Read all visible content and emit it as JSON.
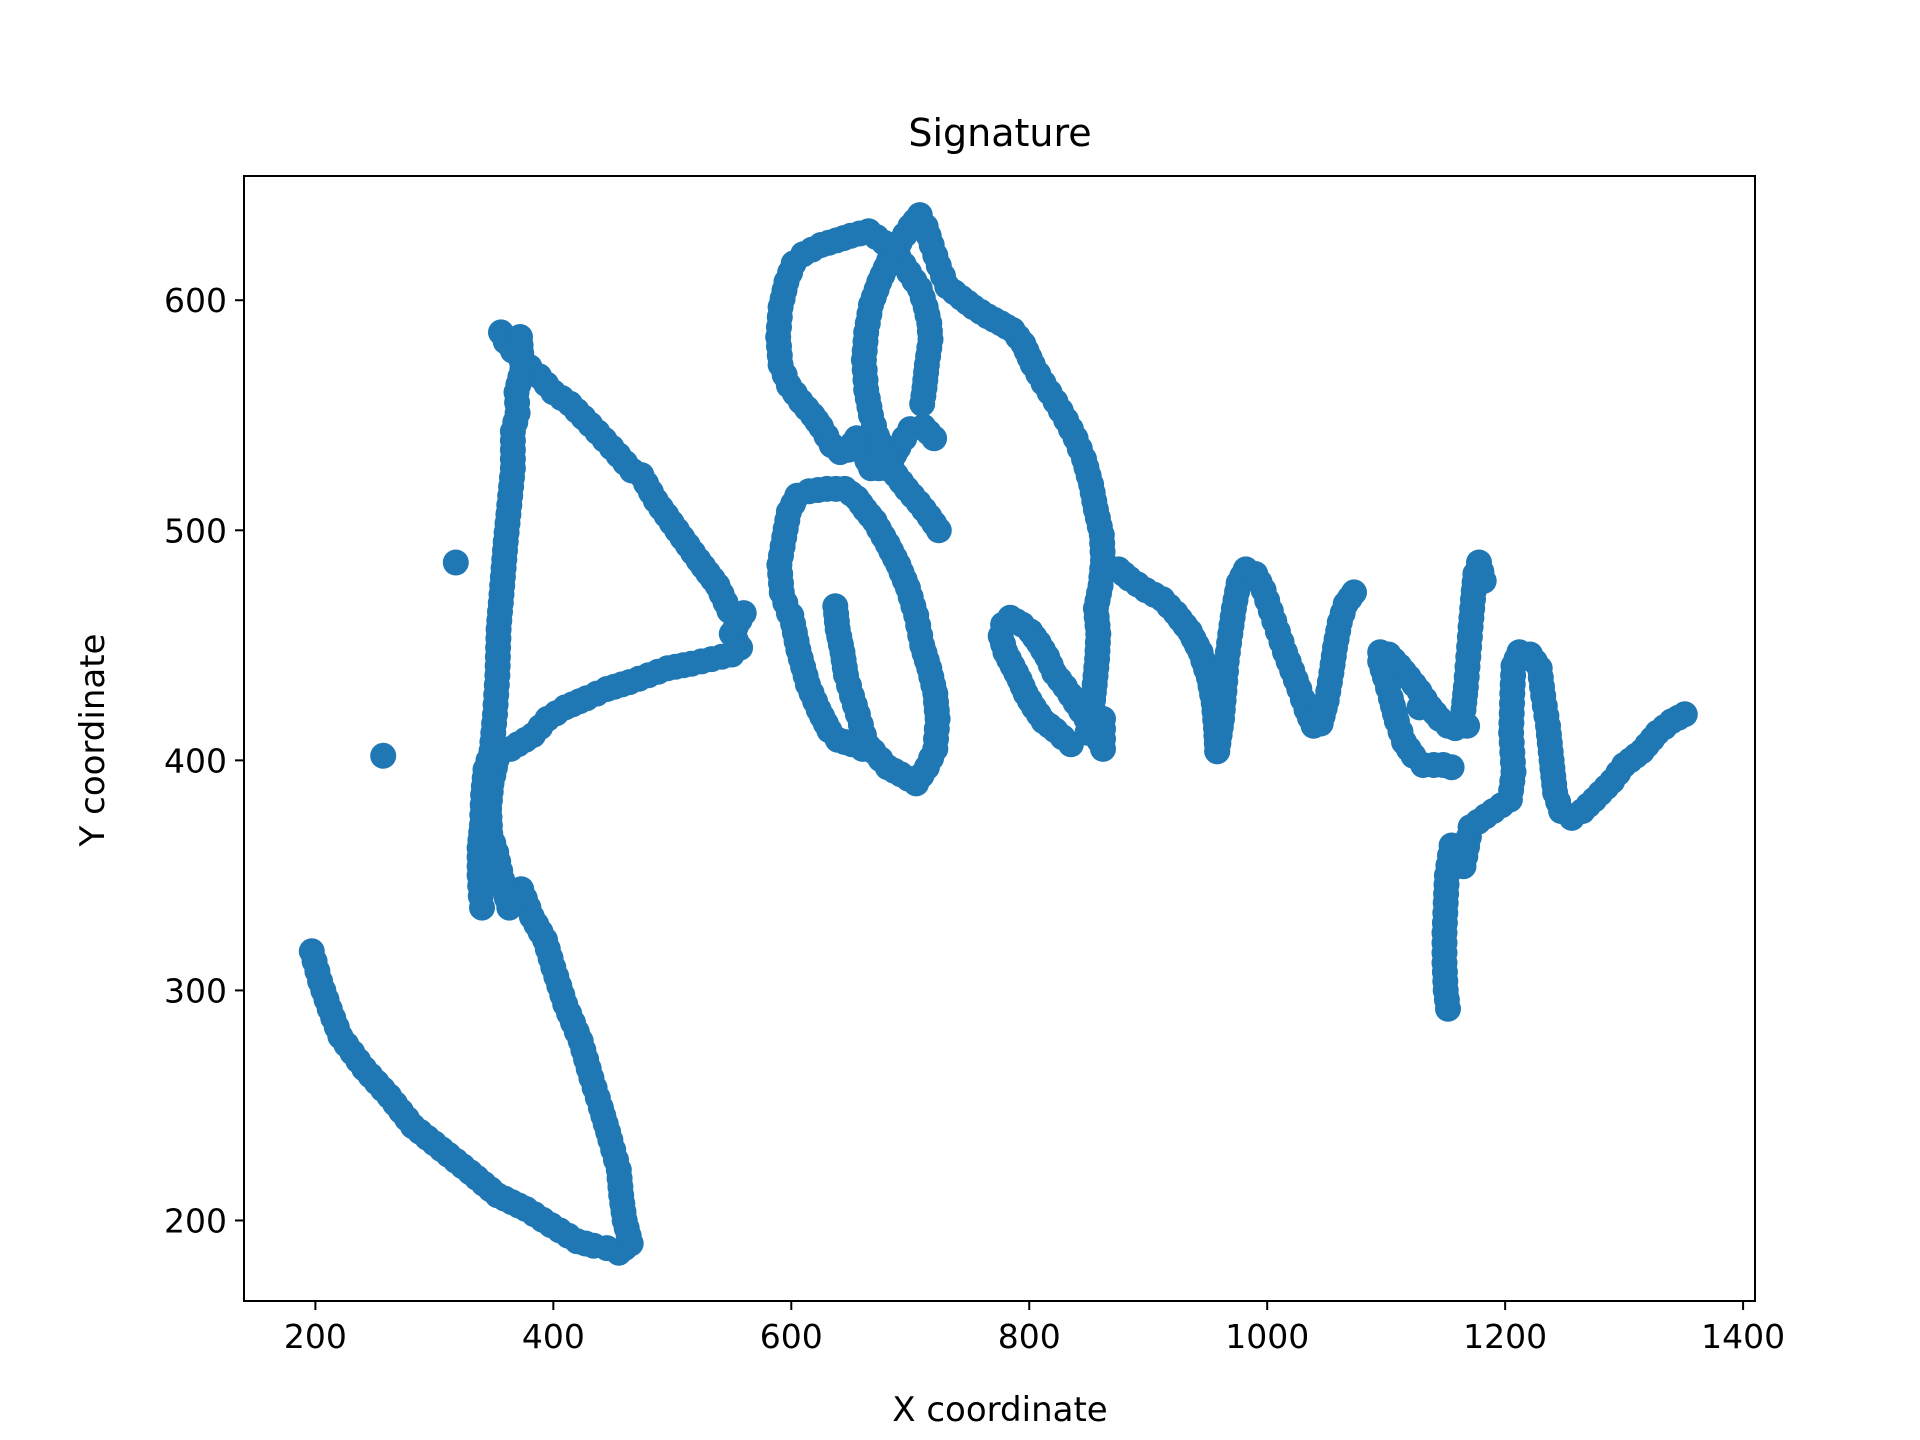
{
  "chart_data": {
    "type": "scatter",
    "title": "Signature",
    "xlabel": "X coordinate",
    "ylabel": "Y coordinate",
    "xlim": [
      140,
      1410
    ],
    "ylim": [
      165,
      654
    ],
    "xticks": [
      200,
      400,
      600,
      800,
      1000,
      1200,
      1400
    ],
    "yticks": [
      200,
      300,
      400,
      500,
      600
    ],
    "grid": false,
    "legend": "none",
    "series_color": "#1f77b4",
    "strokes": [
      [
        [
          197,
          317
        ],
        [
          204,
          304
        ],
        [
          212,
          292
        ],
        [
          221,
          280
        ],
        [
          241,
          266
        ],
        [
          262,
          254
        ],
        [
          282,
          241
        ],
        [
          306,
          231
        ],
        [
          330,
          221
        ],
        [
          353,
          211
        ],
        [
          377,
          205
        ],
        [
          398,
          198
        ],
        [
          420,
          191
        ],
        [
          434,
          189
        ],
        [
          445,
          188
        ],
        [
          455,
          186
        ],
        [
          465,
          190
        ],
        [
          460,
          200
        ],
        [
          457,
          211
        ],
        [
          455,
          222
        ],
        [
          448,
          235
        ],
        [
          440,
          249
        ],
        [
          432,
          262
        ],
        [
          423,
          278
        ],
        [
          410,
          294
        ],
        [
          400,
          310
        ],
        [
          393,
          322
        ],
        [
          382,
          332
        ],
        [
          373,
          344
        ],
        [
          363,
          336
        ],
        [
          357,
          348
        ],
        [
          352,
          360
        ],
        [
          347,
          368
        ],
        [
          346,
          379
        ],
        [
          348,
          390
        ],
        [
          354,
          404
        ],
        [
          364,
          405
        ],
        [
          383,
          411
        ],
        [
          395,
          418
        ],
        [
          410,
          423
        ],
        [
          428,
          427
        ],
        [
          445,
          431
        ],
        [
          464,
          434
        ],
        [
          480,
          437
        ],
        [
          496,
          440
        ],
        [
          516,
          442
        ],
        [
          533,
          444
        ],
        [
          550,
          446
        ],
        [
          557,
          449
        ],
        [
          550,
          455
        ],
        [
          560,
          464
        ]
      ],
      [
        [
          356,
          586
        ],
        [
          360,
          582
        ],
        [
          366,
          578
        ],
        [
          373,
          575
        ],
        [
          380,
          571
        ],
        [
          388,
          567
        ],
        [
          400,
          560
        ],
        [
          414,
          555
        ],
        [
          431,
          546
        ],
        [
          449,
          536
        ],
        [
          466,
          526
        ],
        [
          474,
          524
        ],
        [
          486,
          513
        ],
        [
          504,
          500
        ],
        [
          522,
          487
        ],
        [
          538,
          476
        ],
        [
          548,
          465
        ]
      ],
      [
        [
          372,
          584
        ],
        [
          374,
          570
        ],
        [
          369,
          560
        ],
        [
          370,
          551
        ],
        [
          366,
          543
        ],
        [
          366,
          527
        ],
        [
          363,
          511
        ],
        [
          360,
          495
        ],
        [
          357,
          476
        ],
        [
          354,
          457
        ],
        [
          353,
          437
        ],
        [
          351,
          420
        ],
        [
          348,
          404
        ],
        [
          343,
          396
        ],
        [
          341,
          385
        ],
        [
          340,
          372
        ],
        [
          338,
          362
        ],
        [
          338,
          350
        ],
        [
          339,
          341
        ],
        [
          340,
          336
        ]
      ],
      [
        [
          257,
          402
        ]
      ],
      [
        [
          318,
          486
        ]
      ],
      [
        [
          598,
          464
        ],
        [
          592,
          473
        ],
        [
          590,
          485
        ],
        [
          594,
          497
        ],
        [
          598,
          508
        ],
        [
          605,
          515
        ],
        [
          615,
          517
        ],
        [
          630,
          518
        ],
        [
          645,
          518
        ],
        [
          655,
          514
        ],
        [
          662,
          509
        ],
        [
          670,
          504
        ],
        [
          681,
          494
        ],
        [
          690,
          485
        ],
        [
          698,
          475
        ],
        [
          705,
          463
        ],
        [
          710,
          450
        ],
        [
          716,
          440
        ],
        [
          721,
          429
        ],
        [
          723,
          418
        ],
        [
          721,
          405
        ],
        [
          714,
          397
        ],
        [
          705,
          390
        ],
        [
          692,
          394
        ],
        [
          681,
          397
        ],
        [
          669,
          404
        ],
        [
          660,
          405
        ],
        [
          651,
          407
        ],
        [
          639,
          409
        ],
        [
          632,
          413
        ],
        [
          623,
          422
        ],
        [
          614,
          433
        ],
        [
          606,
          448
        ],
        [
          600,
          463
        ]
      ],
      [
        [
          637,
          467
        ],
        [
          639,
          457
        ],
        [
          643,
          447
        ],
        [
          646,
          437
        ],
        [
          651,
          428
        ],
        [
          656,
          420
        ],
        [
          661,
          411
        ],
        [
          665,
          406
        ]
      ],
      [
        [
          720,
          540
        ],
        [
          711,
          545
        ],
        [
          700,
          544
        ],
        [
          690,
          536
        ],
        [
          680,
          527
        ],
        [
          667,
          527
        ],
        [
          655,
          540
        ],
        [
          648,
          535
        ],
        [
          641,
          534
        ],
        [
          634,
          537
        ],
        [
          625,
          545
        ],
        [
          618,
          550
        ],
        [
          608,
          556
        ],
        [
          598,
          563
        ],
        [
          591,
          572
        ],
        [
          589,
          584
        ],
        [
          591,
          597
        ],
        [
          596,
          608
        ],
        [
          602,
          616
        ],
        [
          610,
          620
        ],
        [
          625,
          624
        ],
        [
          638,
          626
        ],
        [
          650,
          628
        ],
        [
          665,
          630
        ],
        [
          678,
          625
        ],
        [
          690,
          619
        ],
        [
          699,
          612
        ],
        [
          708,
          605
        ],
        [
          713,
          597
        ],
        [
          716,
          590
        ],
        [
          717,
          583
        ],
        [
          714,
          572
        ],
        [
          712,
          562
        ],
        [
          710,
          555
        ]
      ],
      [
        [
          778,
          459
        ],
        [
          784,
          462
        ],
        [
          794,
          459
        ],
        [
          801,
          456
        ],
        [
          808,
          451
        ],
        [
          815,
          445
        ],
        [
          821,
          438
        ],
        [
          830,
          432
        ],
        [
          839,
          425
        ],
        [
          848,
          418
        ],
        [
          856,
          412
        ],
        [
          862,
          405
        ],
        [
          862,
          418
        ]
      ],
      [
        [
          776,
          454
        ],
        [
          780,
          447
        ],
        [
          786,
          441
        ],
        [
          792,
          435
        ],
        [
          797,
          429
        ],
        [
          804,
          423
        ],
        [
          812,
          417
        ],
        [
          822,
          413
        ],
        [
          828,
          410
        ],
        [
          835,
          407
        ]
      ],
      [
        [
          849,
          412
        ],
        [
          853,
          423
        ],
        [
          855,
          433
        ],
        [
          857,
          444
        ],
        [
          858,
          455
        ],
        [
          856,
          466
        ],
        [
          860,
          476
        ],
        [
          862,
          487
        ],
        [
          861,
          498
        ],
        [
          856,
          509
        ],
        [
          852,
          520
        ],
        [
          846,
          531
        ],
        [
          839,
          540
        ],
        [
          831,
          548
        ],
        [
          822,
          556
        ],
        [
          812,
          564
        ],
        [
          803,
          572
        ],
        [
          795,
          581
        ],
        [
          786,
          587
        ],
        [
          776,
          590
        ],
        [
          765,
          593
        ],
        [
          753,
          597
        ],
        [
          743,
          601
        ],
        [
          731,
          606
        ],
        [
          724,
          615
        ],
        [
          718,
          624
        ],
        [
          713,
          632
        ],
        [
          708,
          637
        ],
        [
          700,
          632
        ],
        [
          691,
          625
        ],
        [
          682,
          617
        ],
        [
          674,
          608
        ],
        [
          667,
          598
        ],
        [
          663,
          586
        ],
        [
          661,
          574
        ],
        [
          663,
          561
        ],
        [
          667,
          550
        ],
        [
          672,
          541
        ],
        [
          680,
          532
        ],
        [
          688,
          524
        ],
        [
          697,
          518
        ],
        [
          707,
          512
        ],
        [
          716,
          506
        ],
        [
          724,
          500
        ]
      ],
      [
        [
          875,
          483
        ],
        [
          884,
          479
        ],
        [
          898,
          474
        ],
        [
          912,
          470
        ],
        [
          923,
          464
        ],
        [
          935,
          456
        ],
        [
          944,
          447
        ],
        [
          951,
          436
        ],
        [
          955,
          425
        ],
        [
          957,
          414
        ],
        [
          958,
          404
        ]
      ],
      [
        [
          958,
          404
        ],
        [
          962,
          418
        ],
        [
          964,
          430
        ],
        [
          966,
          443
        ],
        [
          969,
          455
        ],
        [
          972,
          466
        ],
        [
          976,
          477
        ],
        [
          982,
          483
        ],
        [
          990,
          481
        ],
        [
          997,
          474
        ],
        [
          1003,
          465
        ],
        [
          1009,
          456
        ],
        [
          1015,
          447
        ],
        [
          1021,
          439
        ],
        [
          1027,
          431
        ],
        [
          1033,
          422
        ],
        [
          1039,
          415
        ],
        [
          1045,
          416
        ],
        [
          1050,
          426
        ],
        [
          1054,
          438
        ],
        [
          1057,
          449
        ],
        [
          1061,
          460
        ],
        [
          1066,
          468
        ],
        [
          1073,
          473
        ]
      ],
      [
        [
          1095,
          447
        ],
        [
          1102,
          446
        ],
        [
          1111,
          441
        ],
        [
          1119,
          436
        ],
        [
          1128,
          430
        ],
        [
          1137,
          423
        ],
        [
          1145,
          418
        ],
        [
          1152,
          415
        ],
        [
          1158,
          414
        ],
        [
          1162,
          415
        ],
        [
          1165,
          422
        ],
        [
          1167,
          432
        ],
        [
          1169,
          445
        ],
        [
          1171,
          458
        ],
        [
          1173,
          470
        ],
        [
          1175,
          481
        ],
        [
          1178,
          486
        ],
        [
          1182,
          478
        ]
      ],
      [
        [
          1095,
          443
        ],
        [
          1099,
          436
        ],
        [
          1104,
          427
        ],
        [
          1109,
          417
        ],
        [
          1115,
          408
        ],
        [
          1123,
          402
        ],
        [
          1131,
          398
        ],
        [
          1140,
          398
        ],
        [
          1148,
          398
        ],
        [
          1155,
          397
        ]
      ],
      [
        [
          1128,
          423
        ]
      ],
      [
        [
          1168,
          415
        ]
      ],
      [
        [
          1152,
          292
        ],
        [
          1150,
          300
        ],
        [
          1149,
          312
        ],
        [
          1149,
          325
        ],
        [
          1150,
          338
        ],
        [
          1151,
          350
        ],
        [
          1155,
          363
        ],
        [
          1165,
          354
        ],
        [
          1171,
          371
        ],
        [
          1190,
          378
        ],
        [
          1204,
          383
        ],
        [
          1207,
          395
        ],
        [
          1205,
          412
        ],
        [
          1206,
          429
        ],
        [
          1207,
          441
        ],
        [
          1212,
          447
        ],
        [
          1221,
          446
        ],
        [
          1229,
          440
        ],
        [
          1232,
          428
        ],
        [
          1236,
          415
        ],
        [
          1239,
          400
        ],
        [
          1242,
          386
        ],
        [
          1247,
          378
        ],
        [
          1256,
          375
        ],
        [
          1265,
          378
        ],
        [
          1275,
          383
        ],
        [
          1290,
          391
        ],
        [
          1300,
          398
        ],
        [
          1315,
          404
        ],
        [
          1328,
          412
        ],
        [
          1340,
          417
        ],
        [
          1351,
          420
        ]
      ]
    ]
  }
}
